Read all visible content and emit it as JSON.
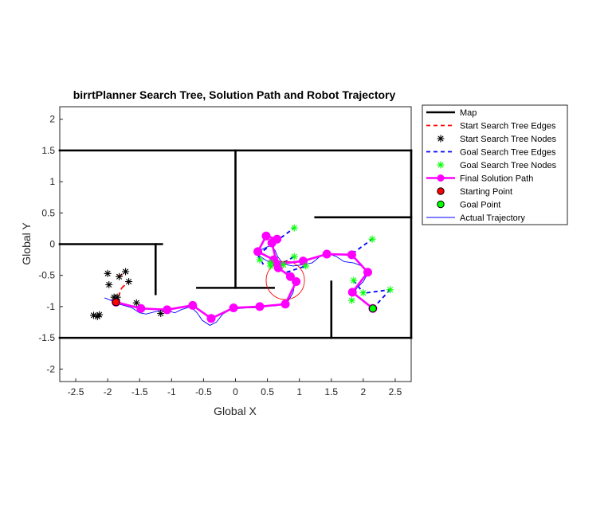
{
  "chart_data": {
    "type": "line",
    "title": "birrtPlanner Search Tree, Solution Path and Robot Trajectory",
    "xlabel": "Global X",
    "ylabel": "Global Y",
    "xlim": [
      -2.75,
      2.75
    ],
    "ylim": [
      -2.2,
      2.2
    ],
    "xticks": [
      -2.5,
      -2,
      -1.5,
      -1,
      -0.5,
      0,
      0.5,
      1,
      1.5,
      2,
      2.5
    ],
    "xtick_labels": [
      "-2.5",
      "-2",
      "-1.5",
      "-1",
      "-0.5",
      "0",
      "0.5",
      "1",
      "1.5",
      "2",
      "2.5"
    ],
    "yticks": [
      -2,
      -1.5,
      -1,
      -0.5,
      0,
      0.5,
      1,
      1.5,
      2
    ],
    "ytick_labels": [
      "-2",
      "-1.5",
      "-1",
      "-0.5",
      "0",
      "0.5",
      "1",
      "1.5",
      "2"
    ],
    "grid": false,
    "legend_position": "outside-top-right",
    "legend": [
      "Map",
      "Start Search Tree Edges",
      "Start Search Tree Nodes",
      "Goal Search Tree Edges",
      "Goal Search Tree Nodes",
      "Final Solution Path",
      "Starting Point",
      "Goal Point",
      "Actual Trajectory"
    ],
    "colors": {
      "map": "#000000",
      "start_tree": "#ff0000",
      "start_nodes": "#000000",
      "goal_tree": "#0000ff",
      "goal_nodes": "#00ff00",
      "solution": "#ff00ff",
      "start_point": "#ff0000",
      "goal_point": "#00ff00",
      "trajectory": "#0000ff",
      "circle": "#ff0000"
    },
    "map_segments": [
      [
        [
          -2.75,
          1.5
        ],
        [
          2.75,
          1.5
        ]
      ],
      [
        [
          -2.75,
          -1.5
        ],
        [
          2.75,
          -1.5
        ]
      ],
      [
        [
          2.75,
          1.5
        ],
        [
          2.75,
          -1.5
        ]
      ],
      [
        [
          0,
          1.5
        ],
        [
          0,
          -0.7
        ]
      ],
      [
        [
          -0.6,
          -0.7
        ],
        [
          0.6,
          -0.7
        ]
      ],
      [
        [
          -2.75,
          0
        ],
        [
          -1.15,
          0
        ]
      ],
      [
        [
          -1.25,
          0
        ],
        [
          -1.25,
          -0.8
        ]
      ],
      [
        [
          1.25,
          0.43
        ],
        [
          2.75,
          0.43
        ]
      ],
      [
        [
          1.5,
          -0.6
        ],
        [
          1.5,
          -1.5
        ]
      ]
    ],
    "start_tree_edges": [
      [
        [
          -1.87,
          -0.94
        ],
        [
          -1.78,
          -0.7
        ]
      ],
      [
        [
          -1.78,
          -0.7
        ],
        [
          -1.67,
          -0.6
        ]
      ],
      [
        [
          -1.82,
          -0.52
        ],
        [
          -1.72,
          -0.44
        ]
      ],
      [
        [
          -1.87,
          -0.94
        ],
        [
          -1.92,
          -0.83
        ]
      ]
    ],
    "start_tree_nodes": [
      [
        -2.0,
        -0.47
      ],
      [
        -1.82,
        -0.52
      ],
      [
        -1.72,
        -0.44
      ],
      [
        -1.67,
        -0.6
      ],
      [
        -1.98,
        -0.65
      ],
      [
        -1.9,
        -0.85
      ],
      [
        -1.85,
        -0.85
      ],
      [
        -2.22,
        -1.14
      ],
      [
        -2.16,
        -1.16
      ],
      [
        -2.13,
        -1.13
      ],
      [
        -1.55,
        -0.94
      ],
      [
        -1.17,
        -1.11
      ]
    ],
    "goal_tree_edges": [
      [
        [
          0.35,
          -0.17
        ],
        [
          0.45,
          -0.35
        ]
      ],
      [
        [
          0.35,
          -0.17
        ],
        [
          0.92,
          0.26
        ]
      ],
      [
        [
          0.66,
          -0.35
        ],
        [
          0.92,
          -0.2
        ]
      ],
      [
        [
          0.8,
          -0.45
        ],
        [
          1.1,
          -0.35
        ]
      ],
      [
        [
          1.83,
          -0.15
        ],
        [
          2.14,
          0.08
        ]
      ],
      [
        [
          1.85,
          -0.58
        ],
        [
          2.0,
          -0.78
        ]
      ],
      [
        [
          2.05,
          -0.78
        ],
        [
          2.42,
          -0.73
        ]
      ],
      [
        [
          2.15,
          -1.03
        ],
        [
          2.42,
          -0.73
        ]
      ]
    ],
    "goal_tree_nodes": [
      [
        0.92,
        0.26
      ],
      [
        2.14,
        0.08
      ],
      [
        0.38,
        -0.25
      ],
      [
        0.55,
        -0.3
      ],
      [
        0.92,
        -0.2
      ],
      [
        0.55,
        -0.35
      ],
      [
        0.75,
        -0.33
      ],
      [
        1.1,
        -0.35
      ],
      [
        1.85,
        -0.58
      ],
      [
        1.82,
        -0.9
      ],
      [
        2.0,
        -0.78
      ],
      [
        2.42,
        -0.73
      ]
    ],
    "solution_path": [
      [
        -1.87,
        -0.93
      ],
      [
        -1.48,
        -1.03
      ],
      [
        -1.07,
        -1.05
      ],
      [
        -0.67,
        -0.98
      ],
      [
        -0.38,
        -1.19
      ],
      [
        -0.03,
        -1.02
      ],
      [
        0.38,
        -1.0
      ],
      [
        0.78,
        -0.96
      ],
      [
        0.95,
        -0.6
      ],
      [
        0.86,
        -0.52
      ],
      [
        0.67,
        -0.38
      ],
      [
        0.6,
        -0.25
      ],
      [
        0.35,
        -0.12
      ],
      [
        0.48,
        0.13
      ],
      [
        0.65,
        0.08
      ],
      [
        0.57,
        0.02
      ],
      [
        0.65,
        -0.32
      ],
      [
        1.06,
        -0.27
      ],
      [
        1.43,
        -0.16
      ],
      [
        1.82,
        -0.17
      ],
      [
        2.07,
        -0.45
      ],
      [
        1.83,
        -0.77
      ],
      [
        2.15,
        -1.03
      ]
    ],
    "trajectory": [
      [
        -2.05,
        -0.86
      ],
      [
        -1.95,
        -0.9
      ],
      [
        -1.87,
        -0.95
      ],
      [
        -1.75,
        -0.98
      ],
      [
        -1.62,
        -1.02
      ],
      [
        -1.5,
        -1.1
      ],
      [
        -1.4,
        -1.12
      ],
      [
        -1.25,
        -1.08
      ],
      [
        -1.1,
        -1.05
      ],
      [
        -0.95,
        -1.1
      ],
      [
        -0.85,
        -1.05
      ],
      [
        -0.7,
        -1.0
      ],
      [
        -0.6,
        -1.1
      ],
      [
        -0.52,
        -1.22
      ],
      [
        -0.4,
        -1.3
      ],
      [
        -0.3,
        -1.25
      ],
      [
        -0.2,
        -1.12
      ],
      [
        -0.08,
        -1.05
      ],
      [
        0.05,
        -1.03
      ],
      [
        0.2,
        -1.02
      ],
      [
        0.35,
        -1.02
      ],
      [
        0.5,
        -0.98
      ],
      [
        0.62,
        -0.99
      ],
      [
        0.72,
        -0.96
      ],
      [
        0.82,
        -0.92
      ],
      [
        0.9,
        -0.78
      ],
      [
        0.93,
        -0.62
      ],
      [
        0.85,
        -0.52
      ],
      [
        0.72,
        -0.42
      ],
      [
        0.6,
        -0.32
      ],
      [
        0.48,
        -0.26
      ],
      [
        0.36,
        -0.18
      ],
      [
        0.3,
        -0.12
      ],
      [
        0.42,
        -0.08
      ],
      [
        0.55,
        -0.02
      ],
      [
        0.62,
        -0.1
      ],
      [
        0.66,
        -0.2
      ],
      [
        0.75,
        -0.32
      ],
      [
        0.9,
        -0.35
      ],
      [
        1.05,
        -0.33
      ],
      [
        1.2,
        -0.3
      ],
      [
        1.32,
        -0.2
      ],
      [
        1.45,
        -0.15
      ],
      [
        1.58,
        -0.2
      ],
      [
        1.7,
        -0.28
      ],
      [
        1.85,
        -0.3
      ],
      [
        1.98,
        -0.35
      ],
      [
        2.08,
        -0.45
      ],
      [
        2.0,
        -0.6
      ],
      [
        1.9,
        -0.7
      ],
      [
        1.85,
        -0.8
      ],
      [
        1.98,
        -0.9
      ],
      [
        2.1,
        -0.98
      ],
      [
        2.15,
        -1.03
      ]
    ],
    "start_point": [
      -1.87,
      -0.93
    ],
    "goal_point": [
      2.15,
      -1.03
    ],
    "circle": {
      "center": [
        0.78,
        -0.58
      ],
      "radius": 0.3
    }
  }
}
